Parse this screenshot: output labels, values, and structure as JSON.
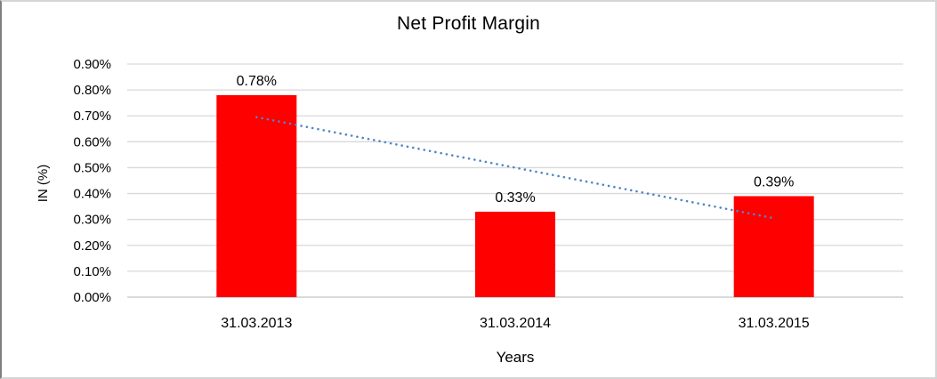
{
  "chart_data": {
    "type": "bar",
    "title": "Net Profit Margin",
    "categories": [
      "31.03.2013",
      "31.03.2014",
      "31.03.2015"
    ],
    "values": [
      0.78,
      0.33,
      0.39
    ],
    "data_labels": [
      "0.78%",
      "0.33%",
      "0.39%"
    ],
    "xlabel": "Years",
    "ylabel": "IN (%)",
    "ylim": [
      0,
      0.9
    ],
    "ytick_labels": [
      "0.00%",
      "0.10%",
      "0.20%",
      "0.30%",
      "0.40%",
      "0.50%",
      "0.60%",
      "0.70%",
      "0.80%",
      "0.90%"
    ],
    "grid": true,
    "legend_position": "none",
    "bar_color": "#FF0000",
    "gridline_color": "#D9D9D9",
    "axis_line_color": "#C4C4C4",
    "text_color": "#000000",
    "background_color": "#FFFFFF",
    "trendline": {
      "type": "linear",
      "style": "dotted",
      "color": "#4F86C6",
      "start_value": 0.695,
      "end_value": 0.305
    }
  }
}
